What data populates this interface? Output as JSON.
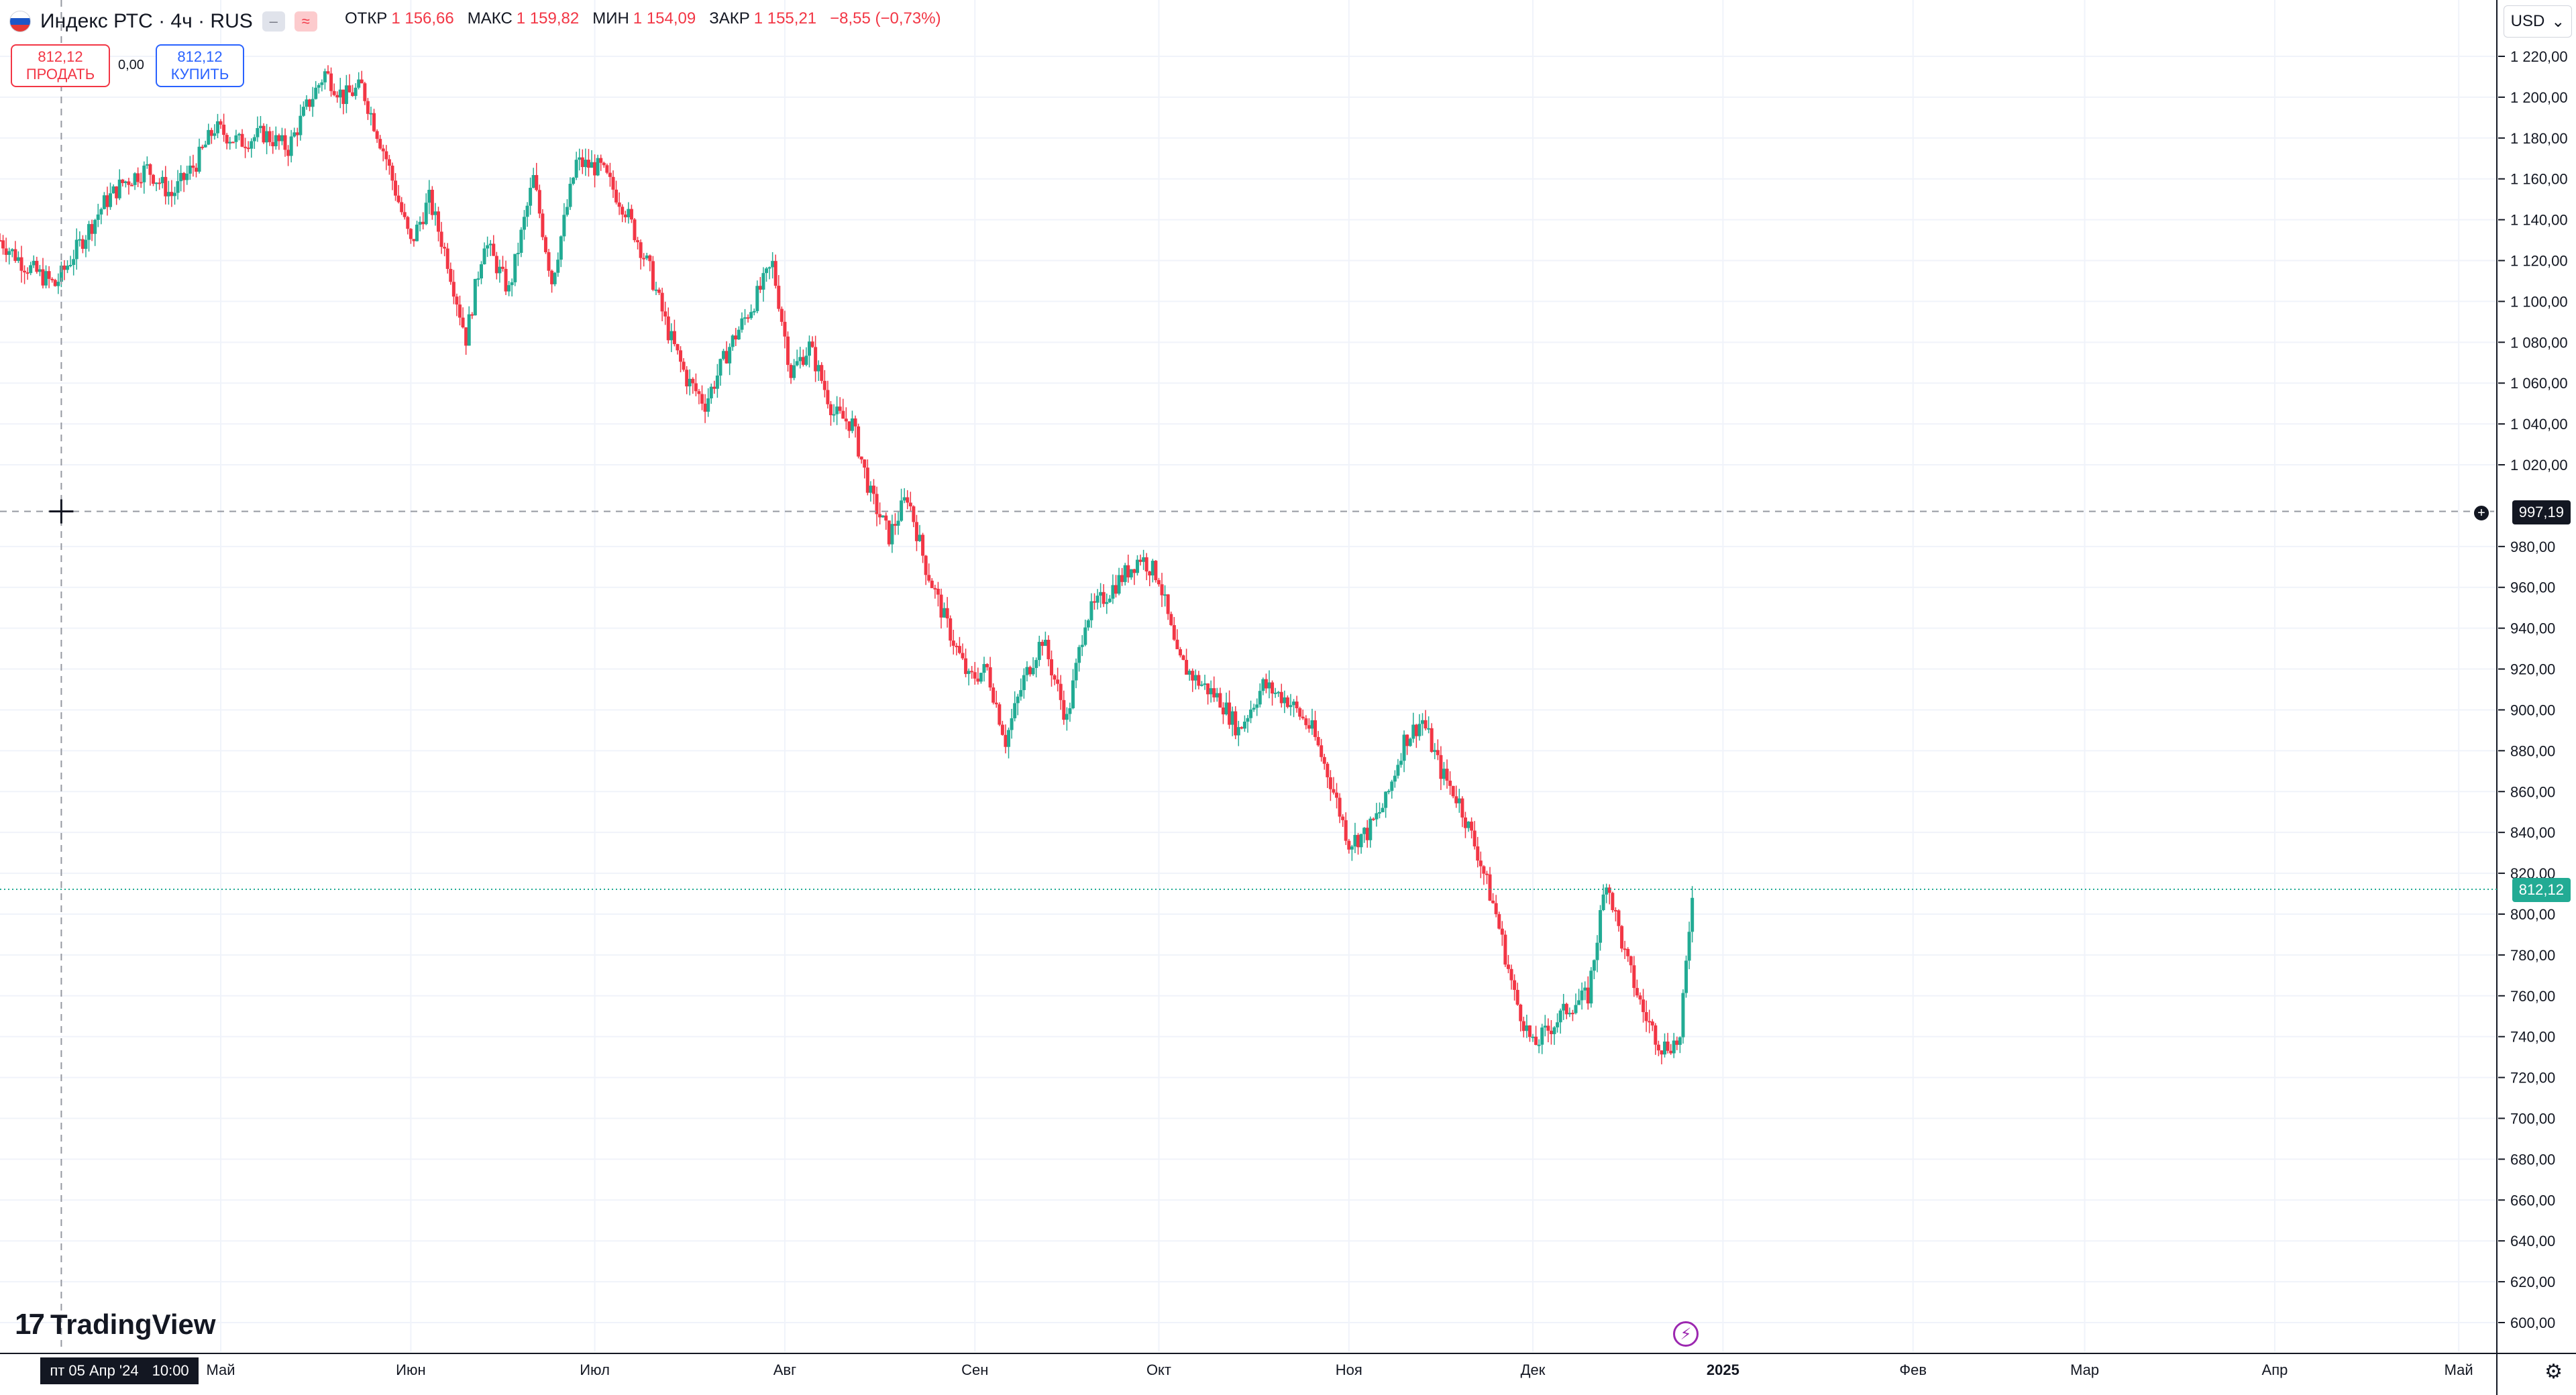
{
  "header": {
    "symbol": "Индекс РТС · 4ч · RUS",
    "btn_grey": "–",
    "btn_pink": "≈",
    "open_label": "ОТКР",
    "open_value": "1 156,66",
    "high_label": "МАКС",
    "high_value": "1 159,82",
    "low_label": "МИН",
    "low_value": "1 154,09",
    "close_label": "ЗАКР",
    "close_value": "1 155,21",
    "change": "−8,55 (−0,73%)"
  },
  "trade": {
    "sell_price": "812,12",
    "sell_label": "ПРОДАТЬ",
    "spread": "0,00",
    "buy_price": "812,12",
    "buy_label": "КУПИТЬ"
  },
  "currency": {
    "label": "USD",
    "icon": "chevron-down-icon"
  },
  "brand": {
    "name": "TradingView"
  },
  "crosshair": {
    "price_label": "997,19",
    "time_date": "пт 05 Апр '24",
    "time_clock": "10:00"
  },
  "last_price_label": "812,12",
  "colors": {
    "up": "#22ab94",
    "down": "#f23645",
    "grid": "#f0f3fa",
    "last_line": "#22ab94",
    "crosshair": "#9598a1"
  },
  "chart_data": {
    "type": "candlestick",
    "title": "Индекс РТС · 4ч · RUS",
    "ylim": [
      590,
      1230
    ],
    "y_ticks": [
      "1 220,00",
      "1 200,00",
      "1 180,00",
      "1 160,00",
      "1 140,00",
      "1 120,00",
      "1 100,00",
      "1 080,00",
      "1 060,00",
      "1 040,00",
      "1 020,00",
      "980,00",
      "960,00",
      "940,00",
      "920,00",
      "900,00",
      "880,00",
      "860,00",
      "840,00",
      "820,00",
      "800,00",
      "780,00",
      "760,00",
      "740,00",
      "720,00",
      "700,00",
      "680,00",
      "660,00",
      "640,00",
      "620,00",
      "600,00"
    ],
    "y_tick_values": [
      1220,
      1200,
      1180,
      1160,
      1140,
      1120,
      1100,
      1080,
      1060,
      1040,
      1020,
      980,
      960,
      940,
      920,
      900,
      880,
      860,
      840,
      820,
      800,
      780,
      760,
      740,
      720,
      700,
      680,
      660,
      640,
      620,
      600
    ],
    "x_ticks": [
      "Май",
      "Июн",
      "Июл",
      "Авг",
      "Сен",
      "Окт",
      "Ноя",
      "Дек",
      "2025",
      "Фев",
      "Мар",
      "Апр",
      "Май"
    ],
    "x_tick_dates": [
      "2024-05-01",
      "2024-06-01",
      "2024-07-01",
      "2024-08-01",
      "2024-09-01",
      "2024-10-01",
      "2024-11-01",
      "2024-12-01",
      "2025-01-01",
      "2025-02-01",
      "2025-03-01",
      "2025-04-01",
      "2025-05-01"
    ],
    "x_range": [
      "2024-03-26",
      "2025-05-07"
    ],
    "grid": true,
    "last_price": 812.12,
    "crosshair_price": 997.19,
    "crosshair_date": "2024-04-05",
    "series": [
      {
        "date": "2024-03-26",
        "close": 1130
      },
      {
        "date": "2024-03-30",
        "close": 1118
      },
      {
        "date": "2024-04-04",
        "close": 1108
      },
      {
        "date": "2024-04-08",
        "close": 1128
      },
      {
        "date": "2024-04-12",
        "close": 1148
      },
      {
        "date": "2024-04-15",
        "close": 1158
      },
      {
        "date": "2024-04-19",
        "close": 1165
      },
      {
        "date": "2024-04-23",
        "close": 1152
      },
      {
        "date": "2024-04-27",
        "close": 1168
      },
      {
        "date": "2024-04-30",
        "close": 1185
      },
      {
        "date": "2024-05-04",
        "close": 1178
      },
      {
        "date": "2024-05-08",
        "close": 1182
      },
      {
        "date": "2024-05-12",
        "close": 1175
      },
      {
        "date": "2024-05-15",
        "close": 1195
      },
      {
        "date": "2024-05-18",
        "close": 1212
      },
      {
        "date": "2024-05-21",
        "close": 1200
      },
      {
        "date": "2024-05-24",
        "close": 1205
      },
      {
        "date": "2024-05-28",
        "close": 1170
      },
      {
        "date": "2024-06-01",
        "close": 1128
      },
      {
        "date": "2024-06-04",
        "close": 1150
      },
      {
        "date": "2024-06-07",
        "close": 1120
      },
      {
        "date": "2024-06-10",
        "close": 1082
      },
      {
        "date": "2024-06-13",
        "close": 1130
      },
      {
        "date": "2024-06-17",
        "close": 1105
      },
      {
        "date": "2024-06-21",
        "close": 1160
      },
      {
        "date": "2024-06-24",
        "close": 1110
      },
      {
        "date": "2024-06-28",
        "close": 1168
      },
      {
        "date": "2024-07-02",
        "close": 1165
      },
      {
        "date": "2024-07-06",
        "close": 1145
      },
      {
        "date": "2024-07-10",
        "close": 1115
      },
      {
        "date": "2024-07-13",
        "close": 1085
      },
      {
        "date": "2024-07-16",
        "close": 1062
      },
      {
        "date": "2024-07-19",
        "close": 1050
      },
      {
        "date": "2024-07-23",
        "close": 1078
      },
      {
        "date": "2024-07-27",
        "close": 1100
      },
      {
        "date": "2024-07-30",
        "close": 1118
      },
      {
        "date": "2024-08-02",
        "close": 1065
      },
      {
        "date": "2024-08-05",
        "close": 1078
      },
      {
        "date": "2024-08-09",
        "close": 1045
      },
      {
        "date": "2024-08-12",
        "close": 1040
      },
      {
        "date": "2024-08-15",
        "close": 1005
      },
      {
        "date": "2024-08-18",
        "close": 985
      },
      {
        "date": "2024-08-21",
        "close": 1005
      },
      {
        "date": "2024-08-24",
        "close": 970
      },
      {
        "date": "2024-08-27",
        "close": 945
      },
      {
        "date": "2024-08-31",
        "close": 915
      },
      {
        "date": "2024-09-03",
        "close": 920
      },
      {
        "date": "2024-09-06",
        "close": 885
      },
      {
        "date": "2024-09-09",
        "close": 915
      },
      {
        "date": "2024-09-12",
        "close": 935
      },
      {
        "date": "2024-09-16",
        "close": 895
      },
      {
        "date": "2024-09-19",
        "close": 945
      },
      {
        "date": "2024-09-22",
        "close": 955
      },
      {
        "date": "2024-09-25",
        "close": 965
      },
      {
        "date": "2024-09-28",
        "close": 975
      },
      {
        "date": "2024-10-01",
        "close": 965
      },
      {
        "date": "2024-10-04",
        "close": 925
      },
      {
        "date": "2024-10-07",
        "close": 915
      },
      {
        "date": "2024-10-11",
        "close": 905
      },
      {
        "date": "2024-10-14",
        "close": 890
      },
      {
        "date": "2024-10-18",
        "close": 912
      },
      {
        "date": "2024-10-22",
        "close": 905
      },
      {
        "date": "2024-10-26",
        "close": 890
      },
      {
        "date": "2024-10-29",
        "close": 865
      },
      {
        "date": "2024-11-01",
        "close": 835
      },
      {
        "date": "2024-11-04",
        "close": 840
      },
      {
        "date": "2024-11-07",
        "close": 855
      },
      {
        "date": "2024-11-10",
        "close": 885
      },
      {
        "date": "2024-11-13",
        "close": 895
      },
      {
        "date": "2024-11-16",
        "close": 870
      },
      {
        "date": "2024-11-19",
        "close": 855
      },
      {
        "date": "2024-11-22",
        "close": 830
      },
      {
        "date": "2024-11-25",
        "close": 800
      },
      {
        "date": "2024-11-28",
        "close": 760
      },
      {
        "date": "2024-12-01",
        "close": 735
      },
      {
        "date": "2024-12-04",
        "close": 745
      },
      {
        "date": "2024-12-07",
        "close": 755
      },
      {
        "date": "2024-12-10",
        "close": 760
      },
      {
        "date": "2024-12-13",
        "close": 818
      },
      {
        "date": "2024-12-16",
        "close": 780
      },
      {
        "date": "2024-12-19",
        "close": 752
      },
      {
        "date": "2024-12-22",
        "close": 735
      },
      {
        "date": "2024-12-25",
        "close": 738
      },
      {
        "date": "2024-12-27",
        "close": 812
      }
    ]
  }
}
